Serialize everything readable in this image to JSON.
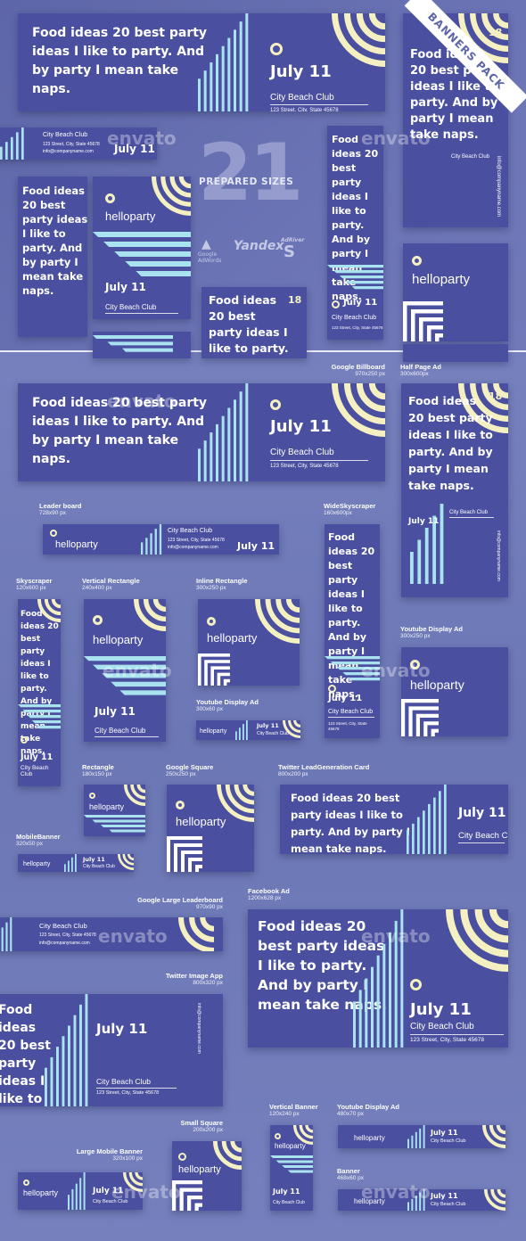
{
  "ribbon": "BANNERS PACK",
  "hero": {
    "number": "21",
    "subtitle": "PREPARED SIZES"
  },
  "platforms": [
    "Google AdWords",
    "Yandex",
    "AdRiver"
  ],
  "watermark": "envato",
  "banner": {
    "headline": "Food ideas 20 best party ideas I like to party. And by party I mean take naps.",
    "brand": "helloparty",
    "date": "July 11",
    "venue": "City Beach Club",
    "address": "123 Street, City, State 45678",
    "email": "info@companyname.com",
    "age": "18"
  },
  "sizes": [
    {
      "name": "Google Billboard",
      "dims": "970x250 px"
    },
    {
      "name": "Half Page Ad",
      "dims": "300x600px"
    },
    {
      "name": "Leader board",
      "dims": "728x90 px"
    },
    {
      "name": "WideSkyscraper",
      "dims": "160x600px"
    },
    {
      "name": "Skyscraper",
      "dims": "120x600 px"
    },
    {
      "name": "Vertical Rectangle",
      "dims": "240x400 px"
    },
    {
      "name": "Inline Rectangle",
      "dims": "300x250 px"
    },
    {
      "name": "Youtube Display Ad",
      "dims": "300x250 px"
    },
    {
      "name": "Youtube Display Ad",
      "dims": "300x60 px"
    },
    {
      "name": "Rectangle",
      "dims": "180x150 px"
    },
    {
      "name": "Google Square",
      "dims": "250x250 px"
    },
    {
      "name": "Twitter LeadGeneration Card",
      "dims": "800x200 px"
    },
    {
      "name": "MobileBanner",
      "dims": "320x50 px"
    },
    {
      "name": "Google Large Leaderboard",
      "dims": "970x90 px"
    },
    {
      "name": "Facebook Ad",
      "dims": "1200x628 px"
    },
    {
      "name": "Twitter Image App",
      "dims": "800x320 px"
    },
    {
      "name": "Small Square",
      "dims": "200x200 px"
    },
    {
      "name": "Vertical Banner",
      "dims": "120x240 px"
    },
    {
      "name": "Youtube Display Ad",
      "dims": "480x70 px"
    },
    {
      "name": "Large Mobile Banner",
      "dims": "320x100 px"
    },
    {
      "name": "Banner",
      "dims": "468x60 px"
    }
  ],
  "colors": {
    "banner_bg": "#4a4f9f",
    "stripe": "#a9e3ef",
    "arc": "#f4f0c2",
    "page_bg": "#6f7ab7"
  }
}
